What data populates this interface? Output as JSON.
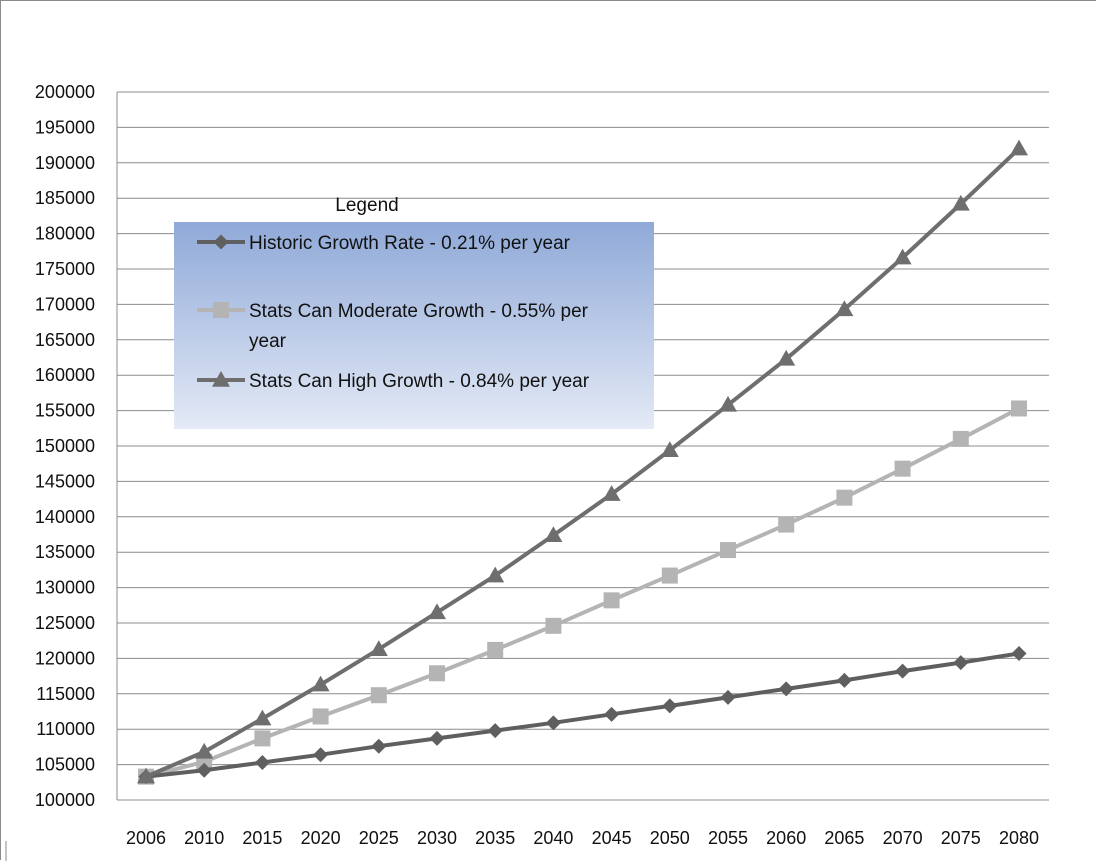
{
  "chart_data": {
    "type": "line",
    "title": "",
    "xlabel": "",
    "ylabel": "",
    "categories": [
      "2006",
      "2010",
      "2015",
      "2020",
      "2025",
      "2030",
      "2035",
      "2040",
      "2045",
      "2050",
      "2055",
      "2060",
      "2065",
      "2070",
      "2075",
      "2080"
    ],
    "ylim": [
      100000,
      200000
    ],
    "y_ticks": [
      "100000",
      "105000",
      "110000",
      "115000",
      "120000",
      "125000",
      "130000",
      "135000",
      "140000",
      "145000",
      "150000",
      "155000",
      "160000",
      "165000",
      "170000",
      "175000",
      "180000",
      "185000",
      "190000",
      "195000",
      "200000"
    ],
    "grid": "horizontal",
    "legend": {
      "title": "Legend",
      "placement": "top-left inside plot"
    },
    "series": [
      {
        "name": "Historic Growth Rate - 0.21% per year",
        "name_lines": [
          "Historic Growth Rate - 0.21% per year"
        ],
        "marker": "diamond",
        "color": "#5f5f5f",
        "values": [
          103300,
          104200,
          105300,
          106400,
          107600,
          108700,
          109800,
          110900,
          112100,
          113300,
          114500,
          115700,
          116900,
          118200,
          119400,
          120700
        ]
      },
      {
        "name": "Stats Can Moderate Growth - 0.55% per year",
        "name_lines": [
          "Stats Can Moderate Growth - 0.55% per",
          "year"
        ],
        "marker": "square",
        "color": "#b4b4b4",
        "values": [
          103300,
          105400,
          108700,
          111800,
          114800,
          117900,
          121200,
          124600,
          128200,
          131700,
          135300,
          138900,
          142700,
          146800,
          151000,
          155300
        ]
      },
      {
        "name": "Stats Can High Growth - 0.84% per year",
        "name_lines": [
          "Stats Can High Growth - 0.84% per year"
        ],
        "marker": "triangle",
        "color": "#6e6e6e",
        "values": [
          103300,
          106800,
          111500,
          116300,
          121300,
          126500,
          131700,
          137400,
          143200,
          149400,
          155800,
          162300,
          169300,
          176600,
          184200,
          192000
        ]
      }
    ]
  }
}
